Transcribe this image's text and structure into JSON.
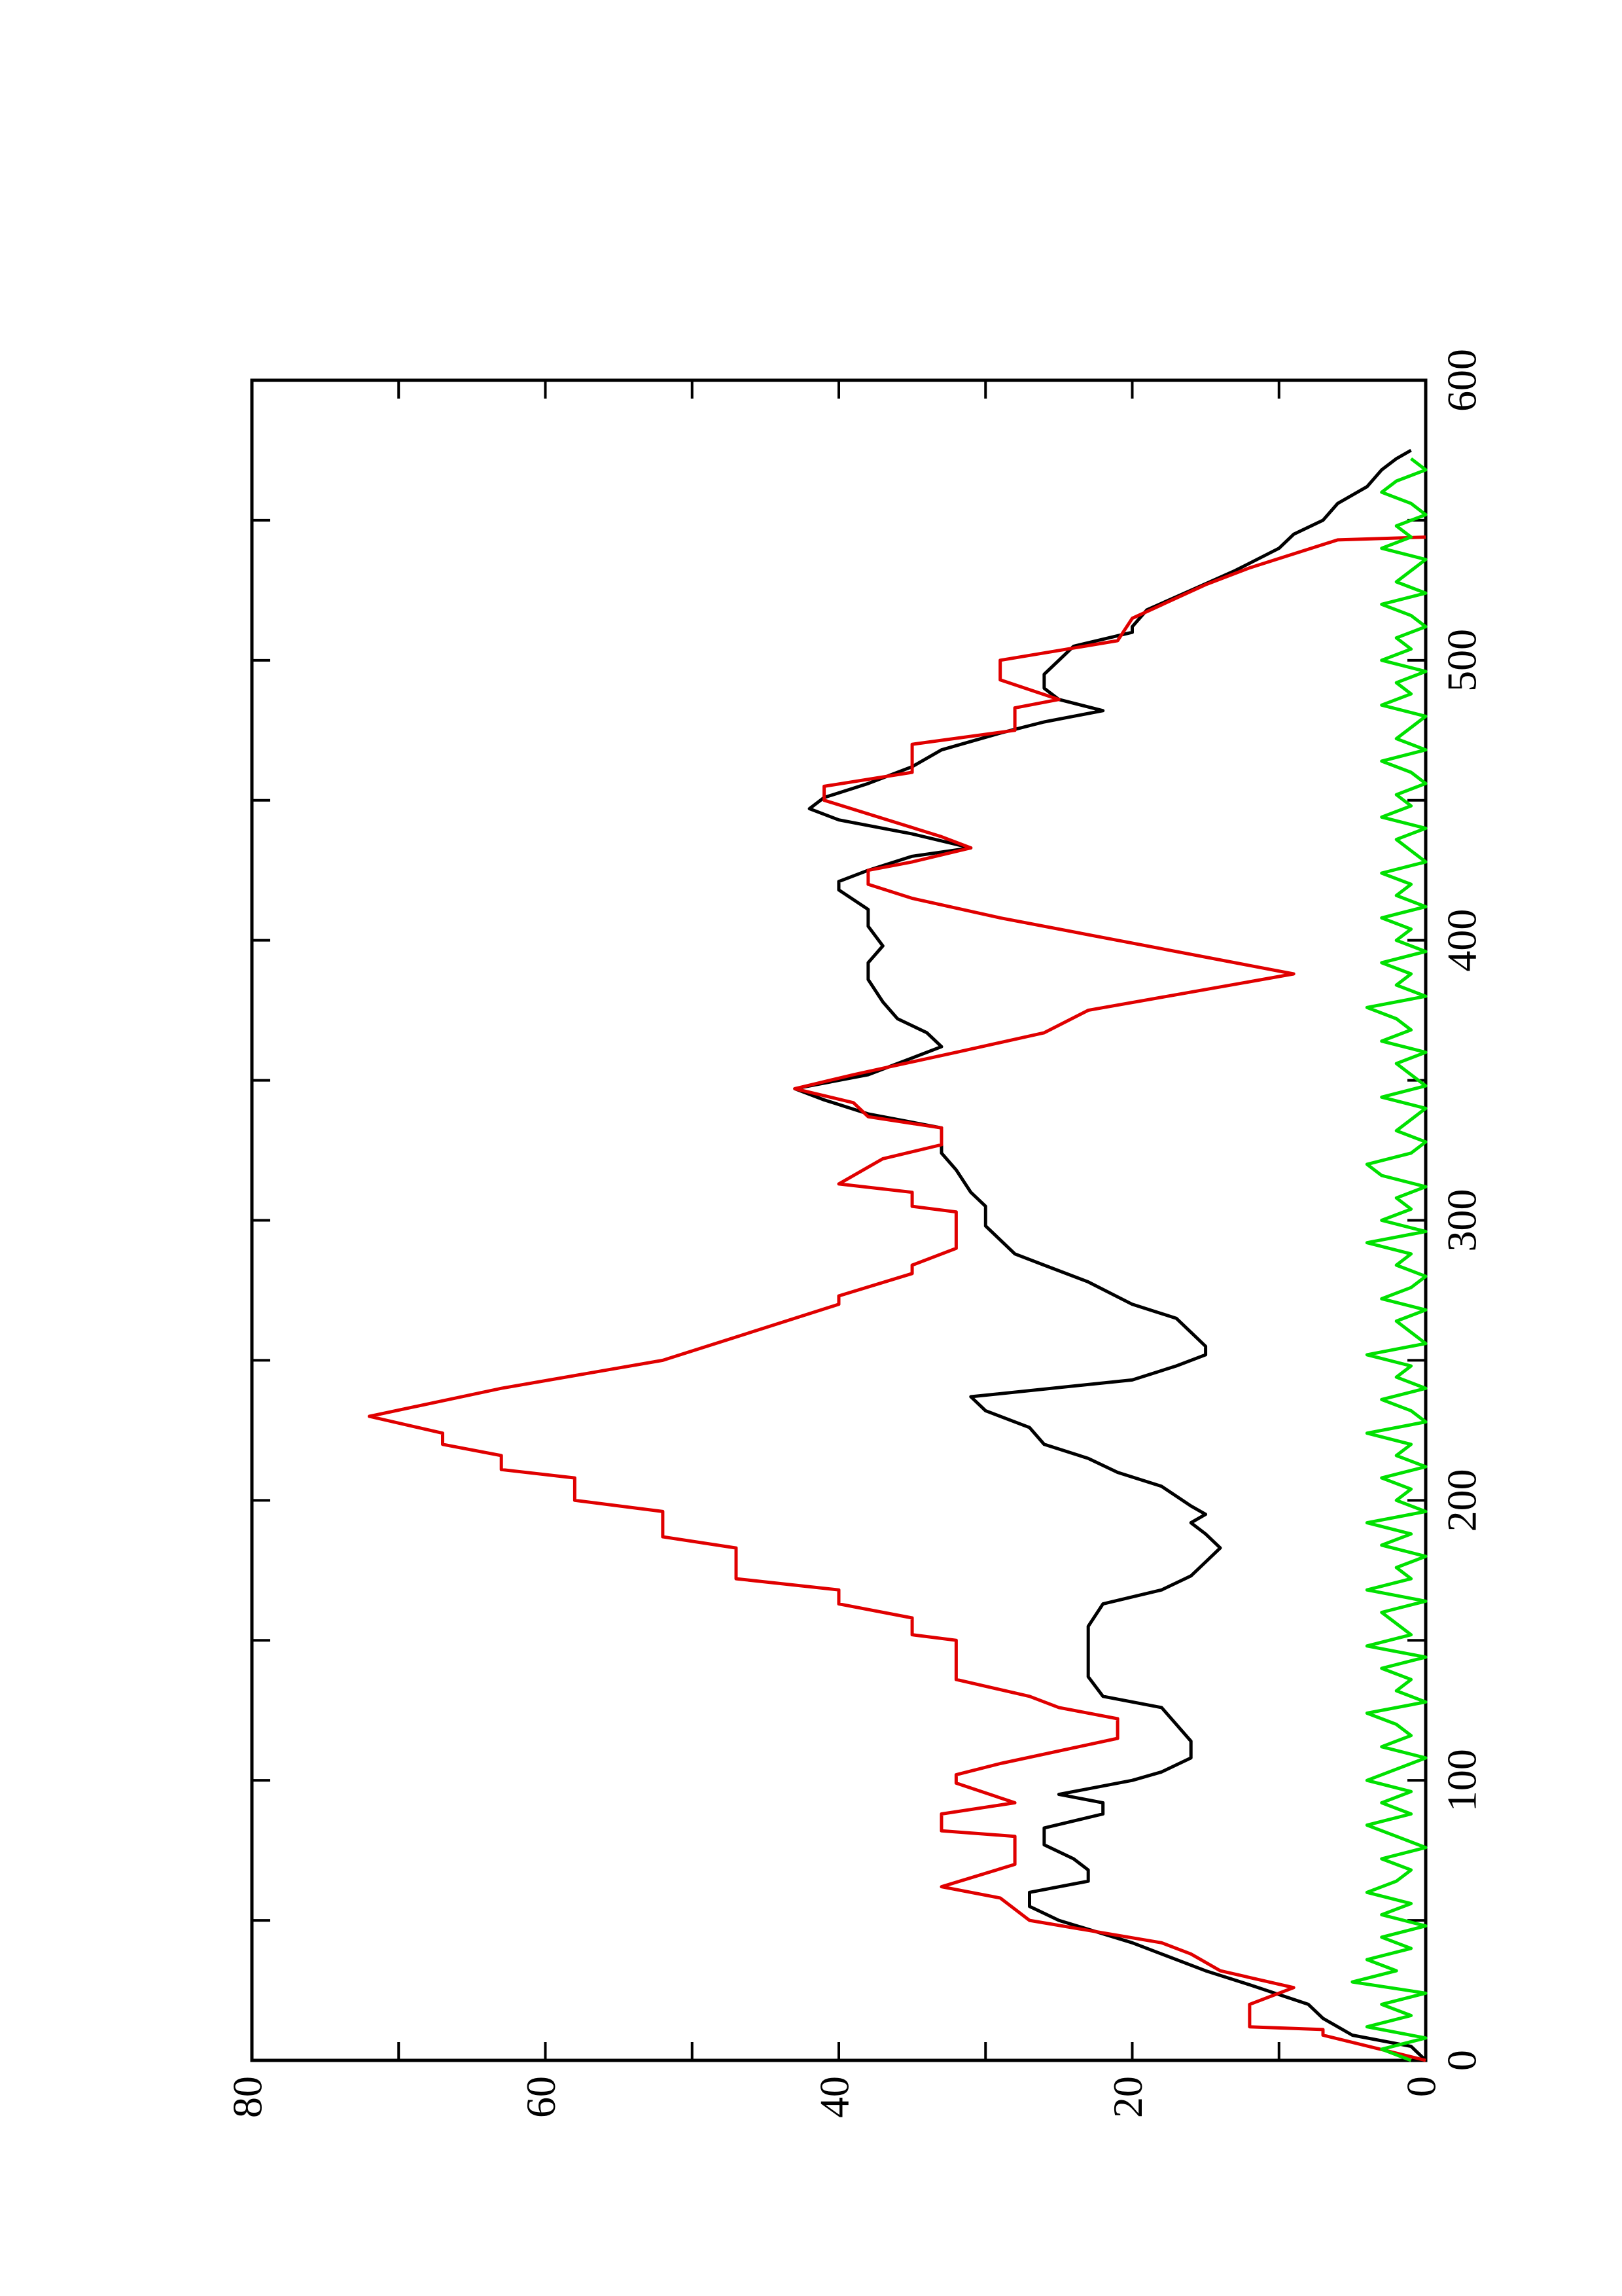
{
  "chart_data": {
    "type": "line",
    "xlim": [
      0,
      600
    ],
    "xticks": [
      0,
      100,
      200,
      300,
      400,
      500,
      600
    ],
    "xminor_ticks": [
      50,
      150,
      250,
      350,
      450,
      550
    ],
    "ylim": [
      0,
      80
    ],
    "yticks": [
      0,
      20,
      40,
      60,
      80
    ],
    "yminor_ticks": [
      10,
      30,
      50,
      70
    ],
    "series": [
      {
        "color": "#000000",
        "x": [
          0,
          5,
          9,
          15,
          20,
          27,
          32,
          38,
          42,
          50,
          55,
          60,
          64,
          68,
          72,
          77,
          83,
          88,
          92,
          95,
          100,
          103,
          108,
          114,
          120,
          126,
          130,
          137,
          145,
          155,
          163,
          168,
          173,
          178,
          183,
          188,
          192,
          195,
          198,
          205,
          210,
          215,
          220,
          226,
          232,
          237,
          243,
          248,
          252,
          255,
          260,
          265,
          270,
          278,
          284,
          288,
          293,
          298,
          305,
          310,
          318,
          324,
          330,
          333,
          338,
          343,
          347,
          352,
          358,
          362,
          367,
          372,
          378,
          386,
          392,
          398,
          405,
          411,
          418,
          421,
          425,
          430,
          433,
          438,
          443,
          447,
          451,
          456,
          462,
          468,
          474,
          478,
          482,
          486,
          490,
          495,
          500,
          505,
          510,
          512,
          518,
          525,
          532,
          540,
          545,
          550,
          556,
          562,
          568,
          572,
          575
        ],
        "values": [
          0,
          1,
          5,
          7,
          8,
          12,
          15,
          18,
          20,
          25,
          27,
          27,
          23,
          23,
          24,
          26,
          26,
          22,
          22,
          25,
          20,
          18,
          16,
          16,
          17,
          18,
          22,
          23,
          23,
          23,
          22,
          18,
          16,
          15,
          14,
          15,
          16,
          15,
          16,
          18,
          21,
          23,
          26,
          27,
          30,
          31,
          20,
          17,
          15,
          15,
          16,
          17,
          20,
          23,
          26,
          28,
          29,
          30,
          30,
          31,
          32,
          33,
          33,
          33,
          38,
          41,
          43,
          38,
          35,
          33,
          34,
          36,
          37,
          38,
          38,
          37,
          38,
          38,
          40,
          40,
          38,
          35,
          31,
          35,
          40,
          42,
          41,
          38,
          35,
          33,
          29,
          26,
          22,
          25,
          26,
          26,
          25,
          24,
          20,
          20,
          19,
          16,
          13,
          10,
          9,
          7,
          6,
          4,
          3,
          2,
          1
        ]
      },
      {
        "color": "#e00000",
        "x": [
          0,
          9,
          11,
          12,
          20,
          26,
          32,
          38,
          42,
          50,
          58,
          62,
          70,
          80,
          82,
          88,
          92,
          99,
          102,
          106,
          115,
          122,
          126,
          130,
          136,
          150,
          152,
          158,
          163,
          168,
          172,
          183,
          187,
          196,
          200,
          208,
          211,
          216,
          220,
          224,
          230,
          240,
          250,
          270,
          273,
          281,
          284,
          290,
          300,
          303,
          305,
          310,
          313,
          322,
          327,
          333,
          337,
          342,
          347,
          352,
          360,
          367,
          375,
          388,
          400,
          408,
          415,
          420,
          425,
          428,
          433,
          437,
          450,
          455,
          460,
          470,
          475,
          483,
          486,
          493,
          500,
          507,
          515,
          527,
          533,
          543,
          544
        ],
        "values": [
          0,
          7,
          7,
          12,
          12,
          9,
          14,
          16,
          18,
          27,
          29,
          33,
          28,
          28,
          33,
          33,
          28,
          32,
          32,
          29,
          21,
          21,
          25,
          27,
          32,
          32,
          35,
          35,
          40,
          40,
          47,
          47,
          52,
          52,
          58,
          58,
          63,
          63,
          67,
          67,
          72,
          63,
          52,
          40,
          40,
          35,
          35,
          32,
          32,
          32,
          35,
          35,
          40,
          37,
          33,
          33,
          38,
          39,
          43,
          39,
          32,
          26,
          23,
          9,
          21,
          29,
          35,
          38,
          38,
          35,
          31,
          33,
          41,
          41,
          35,
          35,
          28,
          28,
          25,
          29,
          29,
          21,
          20,
          15,
          12,
          6,
          0
        ]
      },
      {
        "color": "#00e000",
        "x": [
          0,
          4,
          8,
          12,
          16,
          20,
          24,
          28,
          32,
          36,
          40,
          44,
          48,
          52,
          56,
          60,
          64,
          68,
          72,
          76,
          80,
          84,
          88,
          92,
          96,
          100,
          104,
          108,
          112,
          116,
          120,
          124,
          128,
          132,
          136,
          140,
          144,
          148,
          152,
          156,
          160,
          164,
          168,
          172,
          176,
          180,
          184,
          188,
          192,
          196,
          200,
          204,
          208,
          212,
          216,
          220,
          224,
          228,
          232,
          236,
          240,
          244,
          248,
          252,
          256,
          260,
          264,
          268,
          272,
          276,
          280,
          284,
          288,
          292,
          296,
          300,
          304,
          308,
          312,
          316,
          320,
          324,
          328,
          332,
          336,
          340,
          344,
          348,
          352,
          356,
          360,
          364,
          368,
          372,
          376,
          380,
          384,
          388,
          392,
          396,
          400,
          404,
          408,
          412,
          416,
          420,
          424,
          428,
          432,
          436,
          440,
          444,
          448,
          452,
          456,
          460,
          464,
          468,
          472,
          476,
          480,
          484,
          488,
          492,
          496,
          500,
          504,
          508,
          512,
          516,
          520,
          524,
          528,
          532,
          536,
          540,
          544,
          548,
          552,
          556,
          560,
          564,
          568,
          572
        ],
        "values": [
          1,
          3,
          0,
          4,
          1,
          3,
          0,
          5,
          2,
          4,
          1,
          3,
          0,
          3,
          1,
          4,
          2,
          1,
          3,
          0,
          2,
          4,
          1,
          3,
          1,
          4,
          2,
          0,
          3,
          1,
          2,
          4,
          0,
          2,
          1,
          3,
          0,
          4,
          1,
          2,
          3,
          0,
          4,
          1,
          2,
          0,
          3,
          1,
          4,
          0,
          2,
          1,
          3,
          0,
          2,
          1,
          4,
          0,
          1,
          3,
          0,
          2,
          1,
          4,
          0,
          1,
          2,
          0,
          3,
          1,
          0,
          2,
          1,
          4,
          0,
          3,
          1,
          2,
          0,
          3,
          4,
          1,
          0,
          2,
          1,
          0,
          3,
          0,
          1,
          2,
          0,
          3,
          1,
          2,
          4,
          0,
          2,
          1,
          3,
          0,
          2,
          1,
          3,
          0,
          2,
          1,
          3,
          0,
          1,
          2,
          0,
          3,
          1,
          2,
          0,
          1,
          3,
          0,
          2,
          1,
          0,
          3,
          1,
          2,
          0,
          3,
          1,
          2,
          0,
          1,
          3,
          0,
          2,
          1,
          0,
          3,
          1,
          2,
          0,
          1,
          3,
          2,
          0,
          1
        ]
      }
    ]
  }
}
